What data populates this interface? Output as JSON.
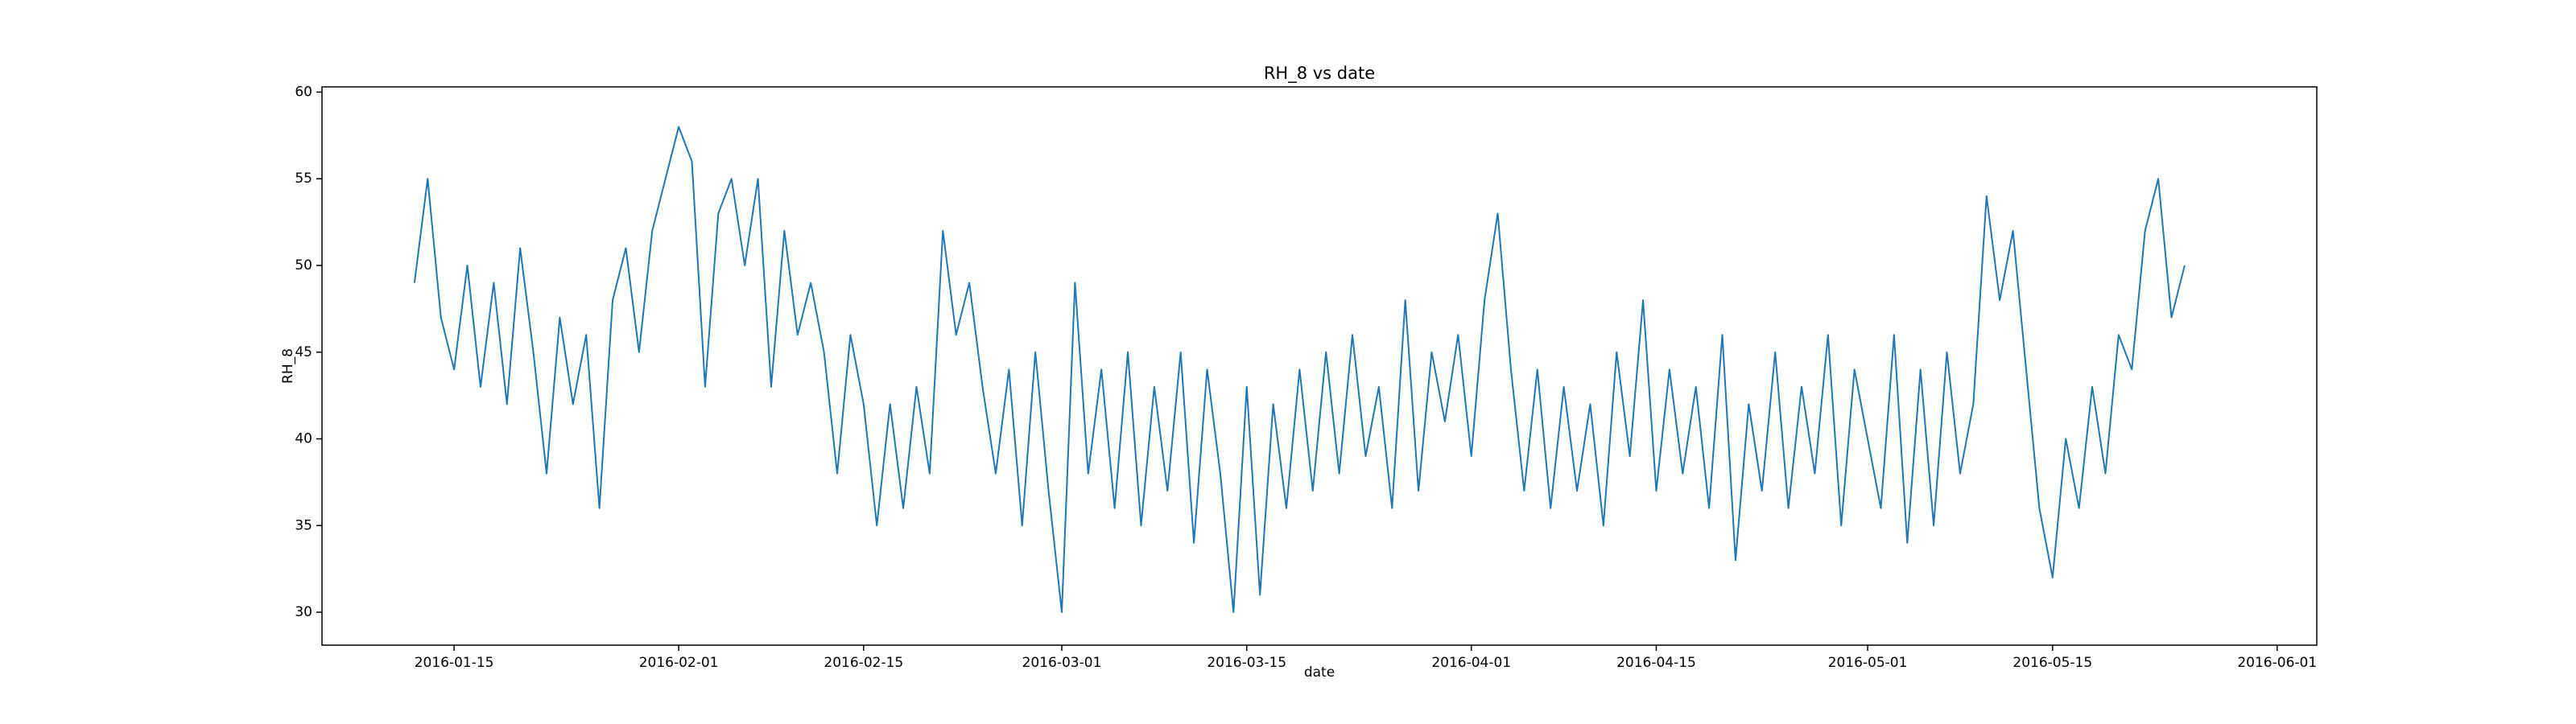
{
  "chart_data": {
    "type": "line",
    "title": "RH_8 vs date",
    "x_label": "date",
    "y_label": "RH_8",
    "color": "#1f77b4",
    "x": [
      "2016-01-12",
      "2016-01-13",
      "2016-01-14",
      "2016-01-15",
      "2016-01-16",
      "2016-01-17",
      "2016-01-18",
      "2016-01-19",
      "2016-01-20",
      "2016-01-21",
      "2016-01-22",
      "2016-01-23",
      "2016-01-24",
      "2016-01-25",
      "2016-01-26",
      "2016-01-27",
      "2016-01-28",
      "2016-01-29",
      "2016-01-30",
      "2016-01-31",
      "2016-02-01",
      "2016-02-02",
      "2016-02-03",
      "2016-02-04",
      "2016-02-05",
      "2016-02-06",
      "2016-02-07",
      "2016-02-08",
      "2016-02-09",
      "2016-02-10",
      "2016-02-11",
      "2016-02-12",
      "2016-02-13",
      "2016-02-14",
      "2016-02-15",
      "2016-02-16",
      "2016-02-17",
      "2016-02-18",
      "2016-02-19",
      "2016-02-20",
      "2016-02-21",
      "2016-02-22",
      "2016-02-23",
      "2016-02-24",
      "2016-02-25",
      "2016-02-26",
      "2016-02-27",
      "2016-02-28",
      "2016-02-29",
      "2016-03-01",
      "2016-03-02",
      "2016-03-03",
      "2016-03-04",
      "2016-03-05",
      "2016-03-06",
      "2016-03-07",
      "2016-03-08",
      "2016-03-09",
      "2016-03-10",
      "2016-03-11",
      "2016-03-12",
      "2016-03-13",
      "2016-03-14",
      "2016-03-15",
      "2016-03-16",
      "2016-03-17",
      "2016-03-18",
      "2016-03-19",
      "2016-03-20",
      "2016-03-21",
      "2016-03-22",
      "2016-03-23",
      "2016-03-24",
      "2016-03-25",
      "2016-03-26",
      "2016-03-27",
      "2016-03-28",
      "2016-03-29",
      "2016-03-30",
      "2016-03-31",
      "2016-04-01",
      "2016-04-02",
      "2016-04-03",
      "2016-04-04",
      "2016-04-05",
      "2016-04-06",
      "2016-04-07",
      "2016-04-08",
      "2016-04-09",
      "2016-04-10",
      "2016-04-11",
      "2016-04-12",
      "2016-04-13",
      "2016-04-14",
      "2016-04-15",
      "2016-04-16",
      "2016-04-17",
      "2016-04-18",
      "2016-04-19",
      "2016-04-20",
      "2016-04-21",
      "2016-04-22",
      "2016-04-23",
      "2016-04-24",
      "2016-04-25",
      "2016-04-26",
      "2016-04-27",
      "2016-04-28",
      "2016-04-29",
      "2016-04-30",
      "2016-05-01",
      "2016-05-02",
      "2016-05-03",
      "2016-05-04",
      "2016-05-05",
      "2016-05-06",
      "2016-05-07",
      "2016-05-08",
      "2016-05-09",
      "2016-05-10",
      "2016-05-11",
      "2016-05-12",
      "2016-05-13",
      "2016-05-14",
      "2016-05-15",
      "2016-05-16",
      "2016-05-17",
      "2016-05-18",
      "2016-05-19",
      "2016-05-20",
      "2016-05-21",
      "2016-05-22",
      "2016-05-23",
      "2016-05-24",
      "2016-05-25"
    ],
    "values": [
      49,
      55,
      47,
      44,
      50,
      43,
      49,
      42,
      51,
      45,
      38,
      47,
      42,
      46,
      36,
      48,
      51,
      45,
      52,
      55,
      58,
      56,
      43,
      53,
      55,
      50,
      55,
      43,
      52,
      46,
      49,
      45,
      38,
      46,
      42,
      35,
      42,
      36,
      43,
      38,
      52,
      46,
      49,
      43,
      38,
      44,
      35,
      45,
      37,
      30,
      49,
      38,
      44,
      36,
      45,
      35,
      43,
      37,
      45,
      34,
      44,
      38,
      30,
      43,
      31,
      42,
      36,
      44,
      37,
      45,
      38,
      46,
      39,
      43,
      36,
      48,
      37,
      45,
      41,
      46,
      39,
      48,
      53,
      44,
      37,
      44,
      36,
      43,
      37,
      42,
      35,
      45,
      39,
      48,
      37,
      44,
      38,
      43,
      36,
      46,
      33,
      42,
      37,
      45,
      36,
      43,
      38,
      46,
      35,
      44,
      40,
      36,
      46,
      34,
      44,
      35,
      45,
      38,
      42,
      54,
      48,
      52,
      44,
      36,
      32,
      40,
      36,
      43,
      38,
      46,
      44,
      52,
      55,
      47,
      50
    ],
    "xlim": [
      "2016-01-05",
      "2016-06-04"
    ],
    "xticks": [
      "2016-01-15",
      "2016-02-01",
      "2016-02-15",
      "2016-03-01",
      "2016-03-15",
      "2016-04-01",
      "2016-04-15",
      "2016-05-01",
      "2016-05-15",
      "2016-06-01"
    ],
    "ylim": [
      28.1,
      60.3
    ],
    "yticks": [
      30,
      35,
      40,
      45,
      50,
      55,
      60
    ]
  }
}
